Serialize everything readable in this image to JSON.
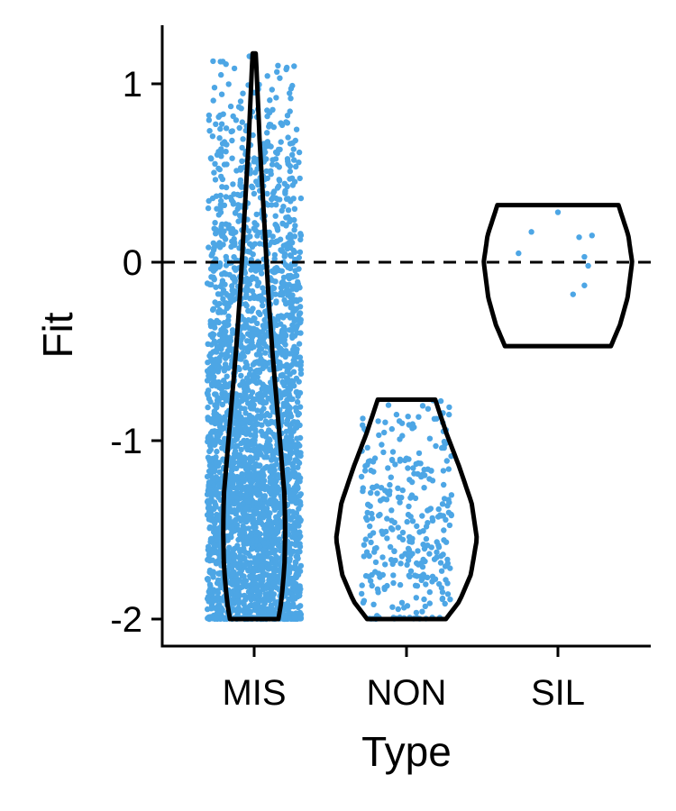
{
  "chart_data": {
    "type": "violin",
    "xlabel": "Type",
    "ylabel": "Fit",
    "categories": [
      "MIS",
      "NON",
      "SIL"
    ],
    "yticks": [
      1,
      0,
      -1,
      -2
    ],
    "ylim": [
      -2.15,
      1.32
    ],
    "reference_line": {
      "y": 0,
      "style": "dashed"
    },
    "point_color": "#4da6e5",
    "outline_color": "#000000",
    "grid": false,
    "legend": "none",
    "groups": [
      {
        "category": "MIS",
        "min": -2.0,
        "max": 1.17,
        "approx_points": 3000,
        "density_profile": [
          [
            -2.0,
            0.32
          ],
          [
            -1.9,
            0.36
          ],
          [
            -1.7,
            0.4
          ],
          [
            -1.5,
            0.41
          ],
          [
            -1.3,
            0.4
          ],
          [
            -1.1,
            0.36
          ],
          [
            -0.8,
            0.3
          ],
          [
            -0.5,
            0.24
          ],
          [
            -0.2,
            0.19
          ],
          [
            0.1,
            0.15
          ],
          [
            0.4,
            0.11
          ],
          [
            0.7,
            0.07
          ],
          [
            1.0,
            0.04
          ],
          [
            1.17,
            0.02
          ]
        ]
      },
      {
        "category": "NON",
        "min": -2.0,
        "max": -0.77,
        "approx_points": 300,
        "density_profile": [
          [
            -2.0,
            0.52
          ],
          [
            -1.9,
            0.7
          ],
          [
            -1.75,
            0.85
          ],
          [
            -1.55,
            0.93
          ],
          [
            -1.35,
            0.86
          ],
          [
            -1.15,
            0.7
          ],
          [
            -0.95,
            0.52
          ],
          [
            -0.77,
            0.38
          ]
        ]
      },
      {
        "category": "SIL",
        "min": -0.47,
        "max": 0.32,
        "points": [
          {
            "x": -0.52,
            "y": 0.05
          },
          {
            "x": -0.35,
            "y": 0.17
          },
          {
            "x": 0.0,
            "y": 0.28
          },
          {
            "x": 0.28,
            "y": 0.14
          },
          {
            "x": 0.45,
            "y": 0.15
          },
          {
            "x": 0.35,
            "y": 0.03
          },
          {
            "x": 0.4,
            "y": -0.02
          },
          {
            "x": 0.2,
            "y": -0.18
          },
          {
            "x": 0.35,
            "y": -0.13
          }
        ],
        "density_profile": [
          [
            -0.47,
            0.7
          ],
          [
            -0.35,
            0.82
          ],
          [
            -0.2,
            0.92
          ],
          [
            0.0,
            0.98
          ],
          [
            0.15,
            0.93
          ],
          [
            0.32,
            0.8
          ]
        ]
      }
    ]
  }
}
